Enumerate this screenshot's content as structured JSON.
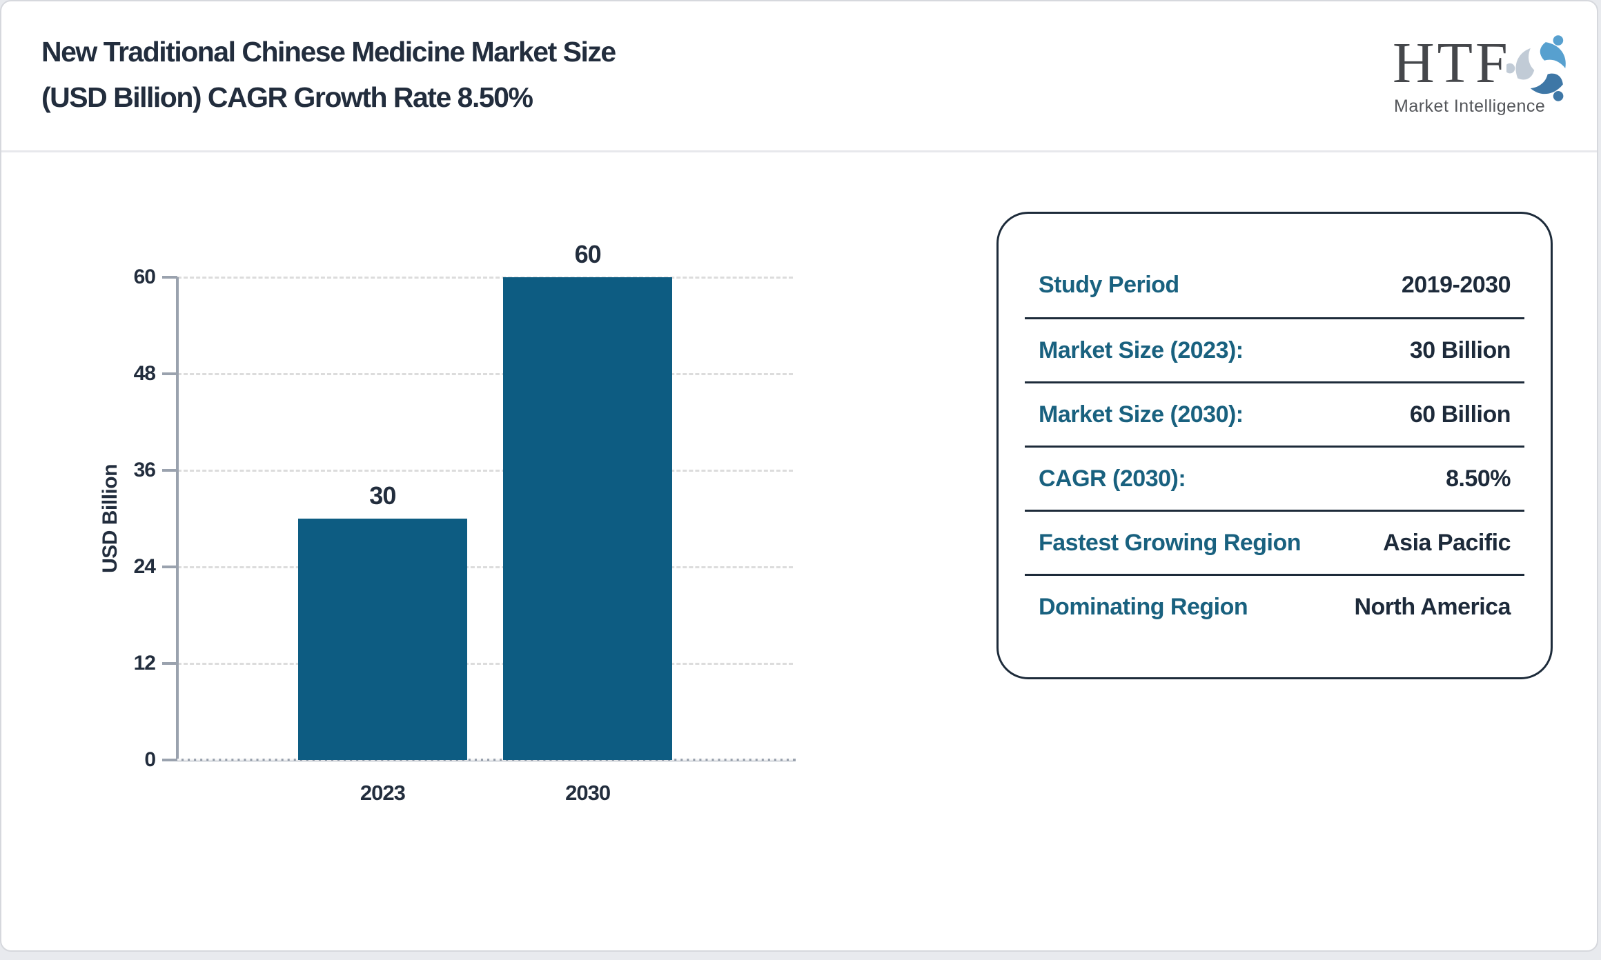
{
  "header": {
    "title_line1": "New Traditional Chinese Medicine Market Size",
    "title_line2": "(USD Billion) CAGR Growth Rate 8.50%"
  },
  "logo": {
    "abbr": "HTF",
    "subtitle": "Market Intelligence",
    "icon": "htf-people-swirl-icon",
    "icon_colors": [
      "#57a0cf",
      "#3e77a6",
      "#c1cbd6"
    ]
  },
  "chart_data": {
    "type": "bar",
    "title": "",
    "categories": [
      "2023",
      "2030"
    ],
    "values": [
      30,
      60
    ],
    "value_labels": [
      "30",
      "60"
    ],
    "xlabel": "",
    "ylabel": "USD Billion",
    "yticks": [
      0,
      12,
      24,
      36,
      48,
      60
    ],
    "ylim": [
      0,
      60
    ],
    "bar_color": "#0d5c82",
    "grid": "horizontal-dashed",
    "legend": "none"
  },
  "info_card": {
    "rows": [
      {
        "label": "Study Period",
        "value": "2019-2030"
      },
      {
        "label": "Market Size (2023):",
        "value": "30 Billion"
      },
      {
        "label": "Market Size (2030):",
        "value": "60 Billion"
      },
      {
        "label": "CAGR (2030):",
        "value": "8.50%"
      },
      {
        "label": "Fastest Growing Region",
        "value": "Asia Pacific"
      },
      {
        "label": "Dominating Region",
        "value": "North America"
      }
    ]
  },
  "colors": {
    "title_text": "#222d3d",
    "label_teal": "#19617f",
    "value_navy": "#1d2a3a",
    "bar_fill": "#0d5c82",
    "axis_gray": "#9aa2ae",
    "gridline_gray": "#dcdcdc",
    "card_border": "#1d2b3a",
    "page_border": "#d6d8dd"
  }
}
